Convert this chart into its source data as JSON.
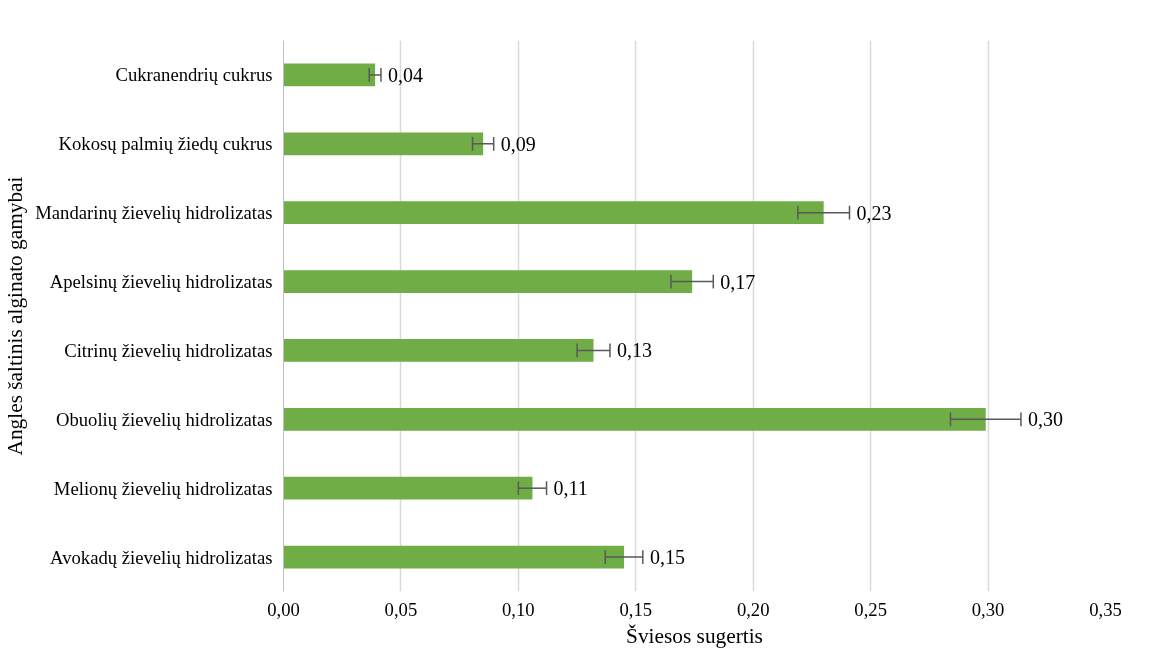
{
  "chart_data": {
    "type": "bar",
    "orientation": "horizontal",
    "xlabel": "Šviesos sugertis",
    "ylabel": "Angles šaltinis alginato gamybai",
    "categories": [
      "Cukranendrių cukrus",
      "Kokosų palmių žiedų cukrus",
      "Mandarinų žievelių hidrolizatas",
      "Apelsinų žievelių hidrolizatas",
      "Citrinų žievelių hidrolizatas",
      "Obuolių žievelių hidrolizatas",
      "Melionų žievelių hidrolizatas",
      "Avokadų žievelių hidrolizatas"
    ],
    "values": [
      0.039,
      0.085,
      0.23,
      0.174,
      0.132,
      0.299,
      0.106,
      0.145
    ],
    "errors": [
      0.0025,
      0.0045,
      0.011,
      0.009,
      0.007,
      0.015,
      0.006,
      0.008
    ],
    "value_labels": [
      "0,04",
      "0,09",
      "0,23",
      "0,17",
      "0,13",
      "0,30",
      "0,11",
      "0,15"
    ],
    "color": "#70ad47",
    "xlim": [
      0,
      0.35
    ],
    "xticks": [
      {
        "value": 0,
        "label": "0,00"
      },
      {
        "value": 0.05,
        "label": "0,05"
      },
      {
        "value": 0.1,
        "label": "0,10"
      },
      {
        "value": 0.15,
        "label": "0,15"
      },
      {
        "value": 0.2,
        "label": "0,20"
      },
      {
        "value": 0.25,
        "label": "0,25"
      },
      {
        "value": 0.3,
        "label": "0,30"
      },
      {
        "value": 0.35,
        "label": "0,35"
      }
    ],
    "grid": "x"
  }
}
